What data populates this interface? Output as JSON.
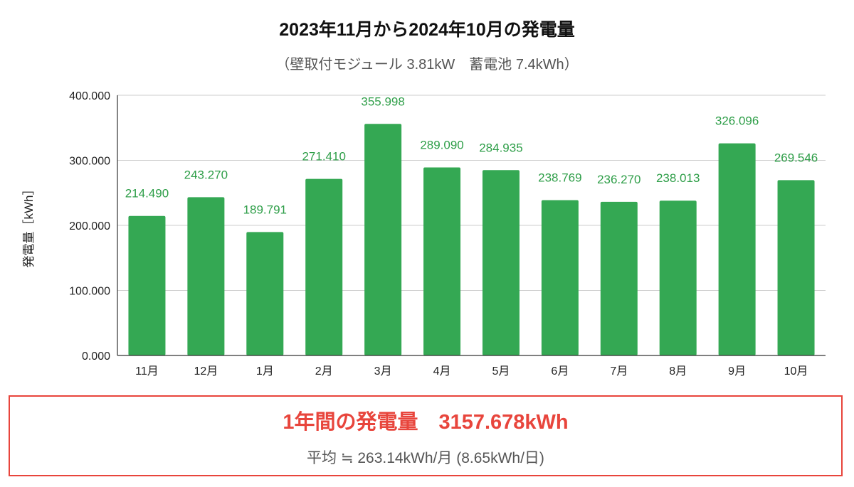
{
  "chart_data": {
    "type": "bar",
    "title": "2023年11月から2024年10月の発電量",
    "subtitle": "（壁取付モジュール 3.81kW　蓄電池 7.4kWh）",
    "xlabel": "",
    "ylabel": "発電量［kWh］",
    "categories": [
      "11月",
      "12月",
      "1月",
      "2月",
      "3月",
      "4月",
      "5月",
      "6月",
      "7月",
      "8月",
      "9月",
      "10月"
    ],
    "values": [
      214.49,
      243.27,
      189.791,
      271.41,
      355.998,
      289.09,
      284.935,
      238.769,
      236.27,
      238.013,
      326.096,
      269.546
    ],
    "value_labels": [
      "214.490",
      "243.270",
      "189.791",
      "271.410",
      "355.998",
      "289.090",
      "284.935",
      "238.769",
      "236.270",
      "238.013",
      "326.096",
      "269.546"
    ],
    "ylim": [
      0,
      400
    ],
    "yticks": [
      0,
      100,
      200,
      300,
      400
    ],
    "ytick_labels": [
      "0.000",
      "100.000",
      "200.000",
      "300.000",
      "400.000"
    ],
    "grid": true,
    "legend": "none",
    "bar_color": "#34a853",
    "label_color": "#2e9e48"
  },
  "summary": {
    "total": "1年間の発電量　3157.678kWh",
    "average": "平均 ≒ 263.14kWh/月 (8.65kWh/日)",
    "accent_color": "#e8453c"
  }
}
